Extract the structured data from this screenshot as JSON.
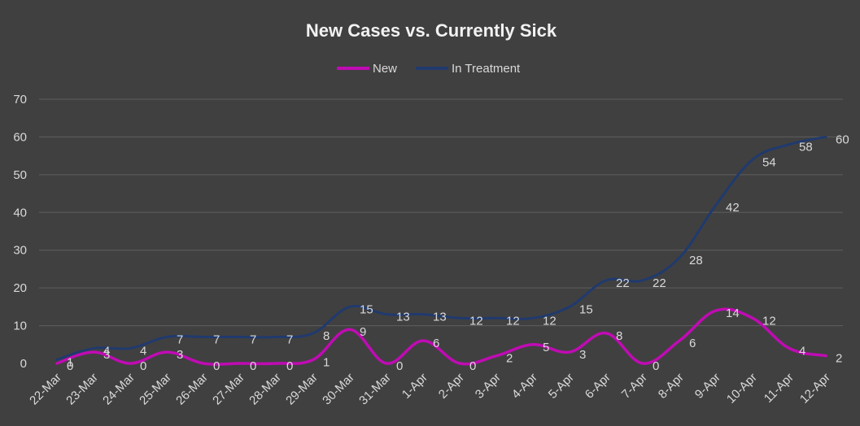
{
  "chart_data": {
    "type": "line",
    "title": "New Cases vs. Currently Sick",
    "xlabel": "",
    "ylabel": "",
    "ylim": [
      0,
      70
    ],
    "yticks": [
      0,
      10,
      20,
      30,
      40,
      50,
      60,
      70
    ],
    "grid": true,
    "legend_position": "top",
    "categories": [
      "22-Mar",
      "23-Mar",
      "24-Mar",
      "25-Mar",
      "26-Mar",
      "27-Mar",
      "28-Mar",
      "29-Mar",
      "30-Mar",
      "31-Mar",
      "1-Apr",
      "2-Apr",
      "3-Apr",
      "4-Apr",
      "5-Apr",
      "6-Apr",
      "7-Apr",
      "8-Apr",
      "9-Apr",
      "10-Apr",
      "11-Apr",
      "12-Apr"
    ],
    "series": [
      {
        "name": "New",
        "color": "#c00bb4",
        "values": [
          0,
          3,
          0,
          3,
          0,
          0,
          0,
          1,
          9,
          0,
          6,
          0,
          2,
          5,
          3,
          8,
          0,
          6,
          14,
          12,
          4,
          2
        ]
      },
      {
        "name": "In Treatment",
        "color": "#203a6e",
        "values": [
          1,
          4,
          4,
          7,
          7,
          7,
          7,
          8,
          15,
          13,
          13,
          12,
          12,
          12,
          15,
          22,
          22,
          28,
          42,
          54,
          58,
          60
        ]
      }
    ],
    "colors": {
      "background": "#404040",
      "grid": "#5e5e5e",
      "text": "#d9d9d9",
      "title": "#f2f2f2"
    }
  }
}
